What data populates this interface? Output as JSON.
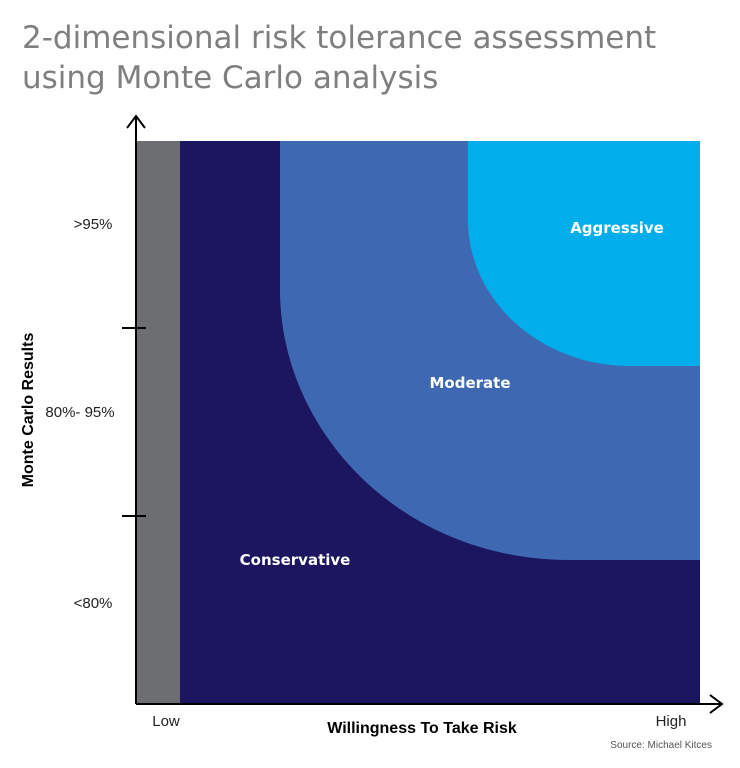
{
  "title_line1": "2-dimensional risk tolerance assessment",
  "title_line2": "using Monte Carlo analysis",
  "y_axis": {
    "label": "Monte Carlo Results",
    "ticks": [
      ">95%",
      "80%- 95%",
      "<80%"
    ]
  },
  "x_axis": {
    "label": "Willingness To Take Risk",
    "low": "Low",
    "high": "High"
  },
  "zones": {
    "aggressive": "Aggressive",
    "moderate": "Moderate",
    "conservative": "Conservative"
  },
  "colors": {
    "excluded": "#6d6e71",
    "conservative": "#1c1660",
    "moderate": "#3e69b2",
    "aggressive": "#02adeb"
  },
  "source": "Source: Michael Kitces"
}
